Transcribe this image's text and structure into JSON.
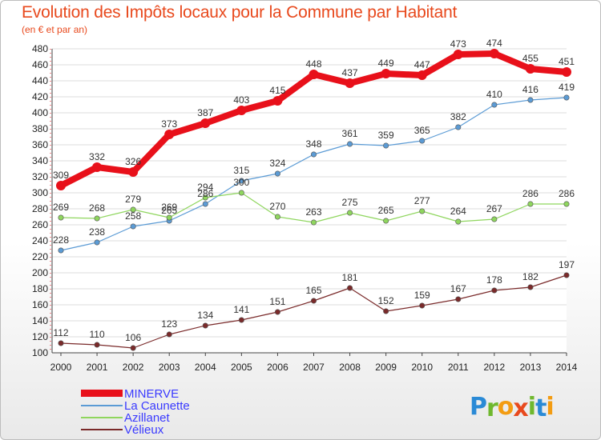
{
  "title": "Evolution des Impôts locaux pour la Commune par Habitant",
  "subtitle": "(en € et par an)",
  "logo": {
    "text": "Proxiti",
    "letters": [
      "P",
      "r",
      "o",
      "x",
      "i",
      "t",
      "i"
    ],
    "colors": [
      "#2a8ad6",
      "#6fb82e",
      "#f39c12",
      "#e8491d",
      "#6fb82e",
      "#2a8ad6",
      "#f39c12"
    ]
  },
  "chart_data": {
    "type": "line",
    "title": "Evolution des Impôts locaux pour la Commune par Habitant",
    "subtitle": "(en € et par an)",
    "x": [
      "2000",
      "2001",
      "2002",
      "2003",
      "2004",
      "2005",
      "2006",
      "2007",
      "2008",
      "2009",
      "2010",
      "2011",
      "2012",
      "2013",
      "2014"
    ],
    "ylim": [
      100,
      480
    ],
    "yticks": [
      100,
      120,
      140,
      160,
      180,
      200,
      220,
      240,
      260,
      280,
      300,
      320,
      340,
      360,
      380,
      400,
      420,
      440,
      460,
      480
    ],
    "grid": true,
    "legend": "bottom-left",
    "series": [
      {
        "name": "MINERVE",
        "color": "#e8101a",
        "width": 8,
        "values": [
          309,
          332,
          326,
          373,
          387,
          403,
          415,
          448,
          437,
          449,
          447,
          473,
          474,
          455,
          451
        ],
        "labels": [
          "309",
          "332",
          "326",
          "373",
          "387",
          "403",
          "415",
          "448",
          "437",
          "449",
          "447",
          "473",
          "474",
          "455",
          "451"
        ]
      },
      {
        "name": "La Caunette",
        "color": "#5b9bd5",
        "width": 1.2,
        "values": [
          228,
          238,
          258,
          265,
          286,
          315,
          324,
          348,
          361,
          359,
          365,
          382,
          410,
          416,
          419
        ],
        "labels": [
          "228",
          "238",
          "258",
          "265",
          "286",
          "315",
          "324",
          "348",
          "361",
          "359",
          "365",
          "382",
          "410",
          "416",
          "419"
        ]
      },
      {
        "name": "Azillanet",
        "color": "#8fd65e",
        "width": 1.2,
        "values": [
          269,
          268,
          279,
          269,
          294,
          300,
          270,
          263,
          275,
          265,
          277,
          264,
          267,
          286,
          286
        ],
        "labels": [
          "269",
          "268",
          "279",
          "269",
          "294",
          "300",
          "270",
          "263",
          "275",
          "265",
          "277",
          "264",
          "267",
          "286",
          "286"
        ]
      },
      {
        "name": "Vélieux",
        "color": "#7a2a2a",
        "width": 1.2,
        "values": [
          112,
          110,
          106,
          123,
          134,
          141,
          151,
          165,
          181,
          152,
          159,
          167,
          178,
          182,
          197
        ],
        "labels": [
          "112",
          "110",
          "106",
          "123",
          "134",
          "141",
          "151",
          "165",
          "181",
          "152",
          "159",
          "167",
          "178",
          "182",
          "197"
        ]
      }
    ]
  }
}
